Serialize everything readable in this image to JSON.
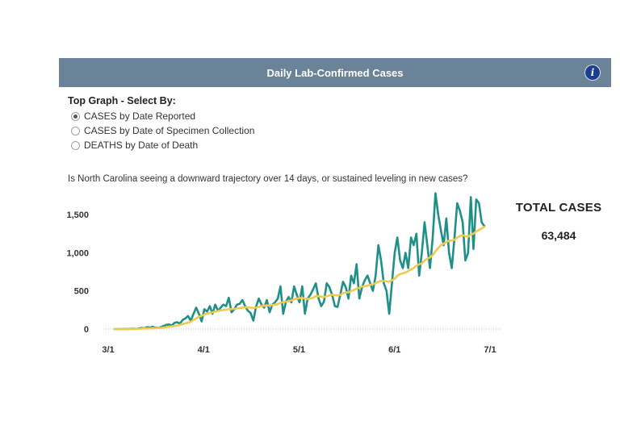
{
  "panel": {
    "title": "Daily Lab-Confirmed Cases",
    "info_glyph": "i"
  },
  "selector": {
    "label": "Top Graph - Select By:",
    "options": [
      {
        "label": "CASES by Date Reported",
        "checked": true
      },
      {
        "label": "CASES by Date of Specimen Collection",
        "checked": false
      },
      {
        "label": "DEATHS by Date of Death",
        "checked": false
      }
    ]
  },
  "question": "Is North Carolina seeing a downward trajectory over 14 days, or sustained leveling in new cases?",
  "totals": {
    "label": "TOTAL CASES",
    "value": "63,484"
  },
  "colors": {
    "header": "#6b8399",
    "daily_line": "#1e9087",
    "average_line": "#f2c94c",
    "info_icon": "#1a3f8f"
  },
  "chart_data": {
    "type": "line",
    "x_start": "3/1",
    "x_tick_labels": [
      "3/1",
      "4/1",
      "5/1",
      "6/1",
      "7/1"
    ],
    "y_ticks": [
      0,
      500,
      1000,
      1500
    ],
    "y_tick_labels": [
      "0",
      "500",
      "1,000",
      "1,500"
    ],
    "ylim": [
      0,
      1650
    ],
    "grid": false,
    "series": [
      {
        "role": "daily",
        "color": "#1e9087",
        "values": [
          0,
          0,
          0,
          0,
          2,
          1,
          3,
          5,
          2,
          8,
          15,
          10,
          25,
          20,
          30,
          18,
          15,
          25,
          40,
          55,
          60,
          45,
          80,
          90,
          70,
          120,
          140,
          170,
          110,
          200,
          280,
          200,
          100,
          260,
          230,
          300,
          200,
          320,
          240,
          280,
          320,
          300,
          410,
          220,
          260,
          320,
          330,
          380,
          300,
          240,
          210,
          110,
          290,
          400,
          320,
          280,
          380,
          220,
          320,
          350,
          400,
          560,
          200,
          360,
          420,
          350,
          560,
          450,
          350,
          560,
          200,
          400,
          450,
          520,
          600,
          400,
          300,
          360,
          600,
          550,
          450,
          300,
          290,
          450,
          620,
          550,
          400,
          700,
          600,
          850,
          400,
          550,
          640,
          700,
          600,
          500,
          700,
          1100,
          900,
          600,
          500,
          200,
          600,
          1000,
          1200,
          900,
          800,
          1000,
          800,
          1200,
          1100,
          1250,
          700,
          1000,
          1400,
          1100,
          800,
          1200,
          1780,
          1500,
          1300,
          1100,
          1450,
          1000,
          800,
          1200,
          1650,
          1550,
          1400,
          900,
          1000,
          1730,
          1050,
          1700,
          1650,
          1400,
          1350
        ]
      },
      {
        "role": "average",
        "color": "#f2c94c",
        "values": [
          0,
          0,
          0,
          0,
          0,
          0,
          1,
          1,
          2,
          3,
          5,
          7,
          8,
          10,
          12,
          12,
          14,
          16,
          20,
          25,
          30,
          35,
          40,
          45,
          55,
          65,
          75,
          85,
          95,
          120,
          140,
          160,
          175,
          190,
          200,
          210,
          220,
          230,
          235,
          245,
          250,
          255,
          260,
          260,
          265,
          270,
          275,
          280,
          285,
          285,
          280,
          275,
          280,
          290,
          300,
          305,
          310,
          310,
          315,
          320,
          325,
          345,
          355,
          360,
          365,
          375,
          390,
          400,
          405,
          410,
          400,
          395,
          400,
          410,
          430,
          430,
          425,
          420,
          430,
          440,
          450,
          445,
          440,
          450,
          470,
          480,
          480,
          500,
          510,
          530,
          540,
          560,
          560,
          570,
          580,
          590,
          600,
          620,
          630,
          630,
          625,
          620,
          640,
          660,
          700,
          720,
          730,
          740,
          760,
          780,
          800,
          830,
          850,
          860,
          900,
          920,
          940,
          970,
          1020,
          1060,
          1100,
          1120,
          1140,
          1160,
          1160,
          1170,
          1200,
          1220,
          1230,
          1220,
          1210,
          1240,
          1250,
          1280,
          1300,
          1320,
          1340
        ]
      }
    ]
  }
}
